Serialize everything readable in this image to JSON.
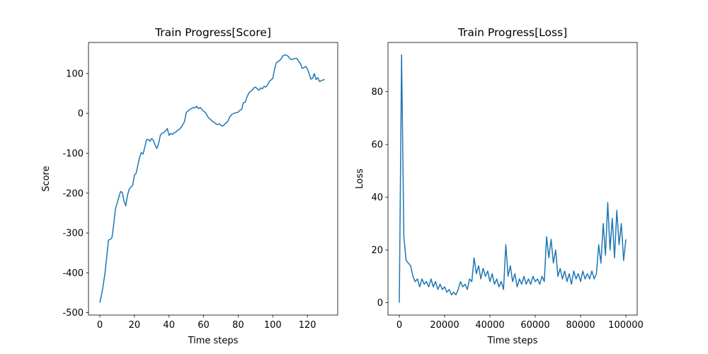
{
  "chart_data": [
    {
      "type": "line",
      "title": "Train Progress[Score]",
      "x_label": "Time steps",
      "y_label": "Score",
      "x": [
        0,
        1,
        2,
        3,
        4,
        5,
        6,
        7,
        8,
        9,
        10,
        11,
        12,
        13,
        14,
        15,
        16,
        17,
        18,
        19,
        20,
        21,
        22,
        23,
        24,
        25,
        26,
        27,
        28,
        29,
        30,
        31,
        32,
        33,
        34,
        35,
        36,
        37,
        38,
        39,
        40,
        41,
        42,
        43,
        44,
        45,
        46,
        47,
        48,
        49,
        50,
        51,
        52,
        53,
        54,
        55,
        56,
        57,
        58,
        59,
        60,
        61,
        62,
        63,
        64,
        65,
        66,
        67,
        68,
        69,
        70,
        71,
        72,
        73,
        74,
        75,
        76,
        77,
        78,
        79,
        80,
        81,
        82,
        83,
        84,
        85,
        86,
        87,
        88,
        89,
        90,
        91,
        92,
        93,
        94,
        95,
        96,
        97,
        98,
        99,
        100,
        101,
        102,
        103,
        104,
        105,
        106,
        107,
        108,
        109,
        110,
        111,
        112,
        113,
        114,
        115,
        116,
        117,
        118,
        119,
        120,
        121,
        122,
        123,
        124,
        125,
        126,
        127,
        128,
        129,
        130
      ],
      "series": [
        {
          "color": "#1f77b4",
          "values": [
            -475,
            -455,
            -430,
            -400,
            -360,
            -318,
            -316,
            -312,
            -280,
            -240,
            -225,
            -210,
            -196,
            -198,
            -220,
            -232,
            -205,
            -190,
            -185,
            -180,
            -155,
            -150,
            -130,
            -110,
            -98,
            -102,
            -85,
            -66,
            -65,
            -70,
            -63,
            -68,
            -80,
            -88,
            -75,
            -55,
            -50,
            -48,
            -44,
            -38,
            -55,
            -50,
            -53,
            -48,
            -47,
            -42,
            -40,
            -35,
            -28,
            -20,
            3,
            6,
            10,
            12,
            15,
            14,
            18,
            12,
            15,
            10,
            5,
            3,
            -5,
            -12,
            -15,
            -20,
            -22,
            -26,
            -28,
            -26,
            -30,
            -32,
            -28,
            -24,
            -20,
            -10,
            -4,
            -1,
            1,
            2,
            3,
            8,
            10,
            27,
            28,
            40,
            50,
            55,
            58,
            64,
            66,
            62,
            58,
            64,
            62,
            68,
            66,
            72,
            80,
            84,
            88,
            110,
            127,
            130,
            133,
            138,
            145,
            147,
            146,
            143,
            137,
            135,
            137,
            138,
            138,
            130,
            125,
            113,
            115,
            118,
            112,
            100,
            86,
            88,
            100,
            85,
            90,
            80,
            82,
            84,
            85
          ]
        }
      ],
      "xlim": [
        -6.55,
        137.55
      ],
      "ylim": [
        -506,
        178
      ],
      "xticks": [
        0,
        20,
        40,
        60,
        80,
        100,
        120
      ],
      "yticks": [
        -500,
        -400,
        -300,
        -200,
        -100,
        0,
        100
      ]
    },
    {
      "type": "line",
      "title": "Train Progress[Loss]",
      "x_label": "Time steps",
      "y_label": "Loss",
      "x": [
        0,
        1000,
        2000,
        3000,
        4000,
        5000,
        6000,
        7000,
        8000,
        9000,
        10000,
        11000,
        12000,
        13000,
        14000,
        15000,
        16000,
        17000,
        18000,
        19000,
        20000,
        21000,
        22000,
        23000,
        24000,
        25000,
        26000,
        27000,
        28000,
        29000,
        30000,
        31000,
        32000,
        33000,
        34000,
        35000,
        36000,
        37000,
        38000,
        39000,
        40000,
        41000,
        42000,
        43000,
        44000,
        45000,
        46000,
        47000,
        48000,
        49000,
        50000,
        51000,
        52000,
        53000,
        54000,
        55000,
        56000,
        57000,
        58000,
        59000,
        60000,
        61000,
        62000,
        63000,
        64000,
        65000,
        66000,
        67000,
        68000,
        69000,
        70000,
        71000,
        72000,
        73000,
        74000,
        75000,
        76000,
        77000,
        78000,
        79000,
        80000,
        81000,
        82000,
        83000,
        84000,
        85000,
        86000,
        87000,
        88000,
        89000,
        90000,
        91000,
        92000,
        93000,
        94000,
        95000,
        96000,
        97000,
        98000,
        99000,
        100000
      ],
      "series": [
        {
          "color": "#1f77b4",
          "values": [
            0,
            94,
            25,
            16,
            15,
            14,
            10,
            8,
            9,
            6,
            9,
            7,
            8,
            6,
            9,
            6,
            8,
            5,
            7,
            5,
            6,
            4,
            5,
            3,
            4,
            3,
            5,
            8,
            6,
            7,
            5,
            9,
            8,
            17,
            11,
            14,
            9,
            13,
            10,
            12,
            8,
            11,
            7,
            9,
            6,
            8,
            5,
            22,
            10,
            14,
            8,
            11,
            6,
            9,
            7,
            10,
            7,
            9,
            7,
            10,
            8,
            9,
            7,
            10,
            8,
            25,
            17,
            24,
            15,
            20,
            10,
            13,
            9,
            12,
            8,
            11,
            7,
            12,
            9,
            11,
            8,
            12,
            9,
            11,
            9,
            12,
            9,
            11,
            22,
            15,
            30,
            18,
            38,
            20,
            32,
            17,
            35,
            22,
            30,
            16,
            24
          ]
        }
      ],
      "xlim": [
        -5000,
        105000
      ],
      "ylim": [
        -4.7,
        98.7
      ],
      "xticks": [
        0,
        20000,
        40000,
        60000,
        80000,
        100000
      ],
      "yticks": [
        0,
        20,
        40,
        60,
        80
      ]
    }
  ]
}
